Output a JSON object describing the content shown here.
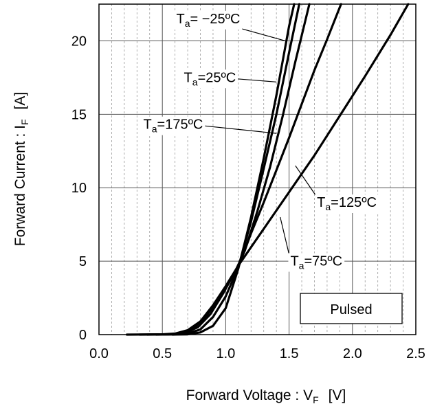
{
  "chart_data": {
    "type": "line",
    "xlabel": "Forward Voltage : V",
    "xlabel_sub": "F",
    "xlabel_unit": "[V]",
    "ylabel": "Forward Current : I",
    "ylabel_sub": "F",
    "ylabel_unit": "[A]",
    "xlim": [
      0,
      2.5
    ],
    "ylim": [
      0,
      22.5
    ],
    "x_ticks": [
      0,
      0.5,
      1.0,
      1.5,
      2.0,
      2.5
    ],
    "x_tick_labels": [
      "0.0",
      "0.5",
      "1.0",
      "1.5",
      "2.0",
      "2.5"
    ],
    "y_ticks": [
      0,
      5,
      10,
      15,
      20
    ],
    "y_tick_labels": [
      "0",
      "5",
      "10",
      "15",
      "20"
    ],
    "grid": true,
    "legend_box": "Pulsed",
    "series": [
      {
        "name": "Ta= −25ºC",
        "label_main": "T",
        "label_sub": "a",
        "label_rest": "= −25ºC",
        "x": [
          0.58,
          0.7,
          0.8,
          0.9,
          1.0,
          1.1,
          1.2,
          1.3,
          1.4,
          1.5,
          1.54
        ],
        "y": [
          0,
          0.02,
          0.15,
          0.6,
          1.8,
          4.5,
          8.0,
          12.0,
          16.3,
          21.0,
          22.5
        ]
      },
      {
        "name": "Ta=25ºC",
        "label_main": "T",
        "label_sub": "a",
        "label_rest": "=25ºC",
        "x": [
          0.45,
          0.6,
          0.7,
          0.8,
          0.9,
          1.0,
          1.1,
          1.2,
          1.3,
          1.4,
          1.5,
          1.58
        ],
        "y": [
          0,
          0.02,
          0.08,
          0.35,
          1.2,
          2.6,
          4.6,
          7.7,
          11.3,
          15.0,
          19.2,
          22.5
        ]
      },
      {
        "name": "Ta=75ºC",
        "label_main": "T",
        "label_sub": "a",
        "label_rest": "=75ºC",
        "x": [
          0.22,
          0.5,
          0.6,
          0.7,
          0.8,
          0.9,
          1.0,
          1.1,
          1.3,
          1.5,
          1.7,
          1.9,
          2.1,
          2.3,
          2.44
        ],
        "y": [
          0,
          0.02,
          0.07,
          0.3,
          0.9,
          2.0,
          3.3,
          4.7,
          7.2,
          9.7,
          12.2,
          14.9,
          17.6,
          20.4,
          22.5
        ]
      },
      {
        "name": "Ta=125ºC",
        "label_main": "T",
        "label_sub": "a",
        "label_rest": "=125ºC",
        "x": [
          0.32,
          0.55,
          0.65,
          0.75,
          0.85,
          0.95,
          1.05,
          1.1,
          1.2,
          1.3,
          1.4,
          1.5,
          1.6,
          1.7,
          1.8,
          1.91
        ],
        "y": [
          0,
          0.02,
          0.1,
          0.45,
          1.3,
          2.5,
          3.9,
          4.6,
          6.9,
          9.0,
          11.2,
          13.4,
          15.7,
          18.0,
          20.1,
          22.5
        ]
      },
      {
        "name": "Ta=175ºC",
        "label_main": "T",
        "label_sub": "a",
        "label_rest": "=175ºC",
        "x": [
          0.38,
          0.58,
          0.68,
          0.78,
          0.88,
          0.98,
          1.08,
          1.15,
          1.25,
          1.35,
          1.45,
          1.55,
          1.66
        ],
        "y": [
          0,
          0.02,
          0.12,
          0.5,
          1.4,
          2.8,
          4.4,
          5.7,
          8.4,
          11.4,
          14.9,
          18.6,
          22.5
        ]
      }
    ],
    "annotations": [
      {
        "series": 0,
        "text_main": "T",
        "text_sub": "a",
        "text_rest": "= −25ºC",
        "label_x": 0.61,
        "label_y": 21.2,
        "tip_x": 1.47,
        "tip_y": 20.0
      },
      {
        "series": 1,
        "text_main": "T",
        "text_sub": "a",
        "text_rest": "=25ºC",
        "label_x": 0.67,
        "label_y": 17.2,
        "tip_x": 1.4,
        "tip_y": 17.2
      },
      {
        "series": 4,
        "text_main": "T",
        "text_sub": "a",
        "text_rest": "=175ºC",
        "label_x": 0.35,
        "label_y": 14.0,
        "tip_x": 1.4,
        "tip_y": 13.7
      },
      {
        "series": 3,
        "text_main": "T",
        "text_sub": "a",
        "text_rest": "=125ºC",
        "label_x": 1.72,
        "label_y": 8.7,
        "tip_x": 1.55,
        "tip_y": 11.5
      },
      {
        "series": 2,
        "text_main": "T",
        "text_sub": "a",
        "text_rest": "=75ºC",
        "label_x": 1.51,
        "label_y": 4.7,
        "tip_x": 1.43,
        "tip_y": 8.0
      }
    ]
  }
}
